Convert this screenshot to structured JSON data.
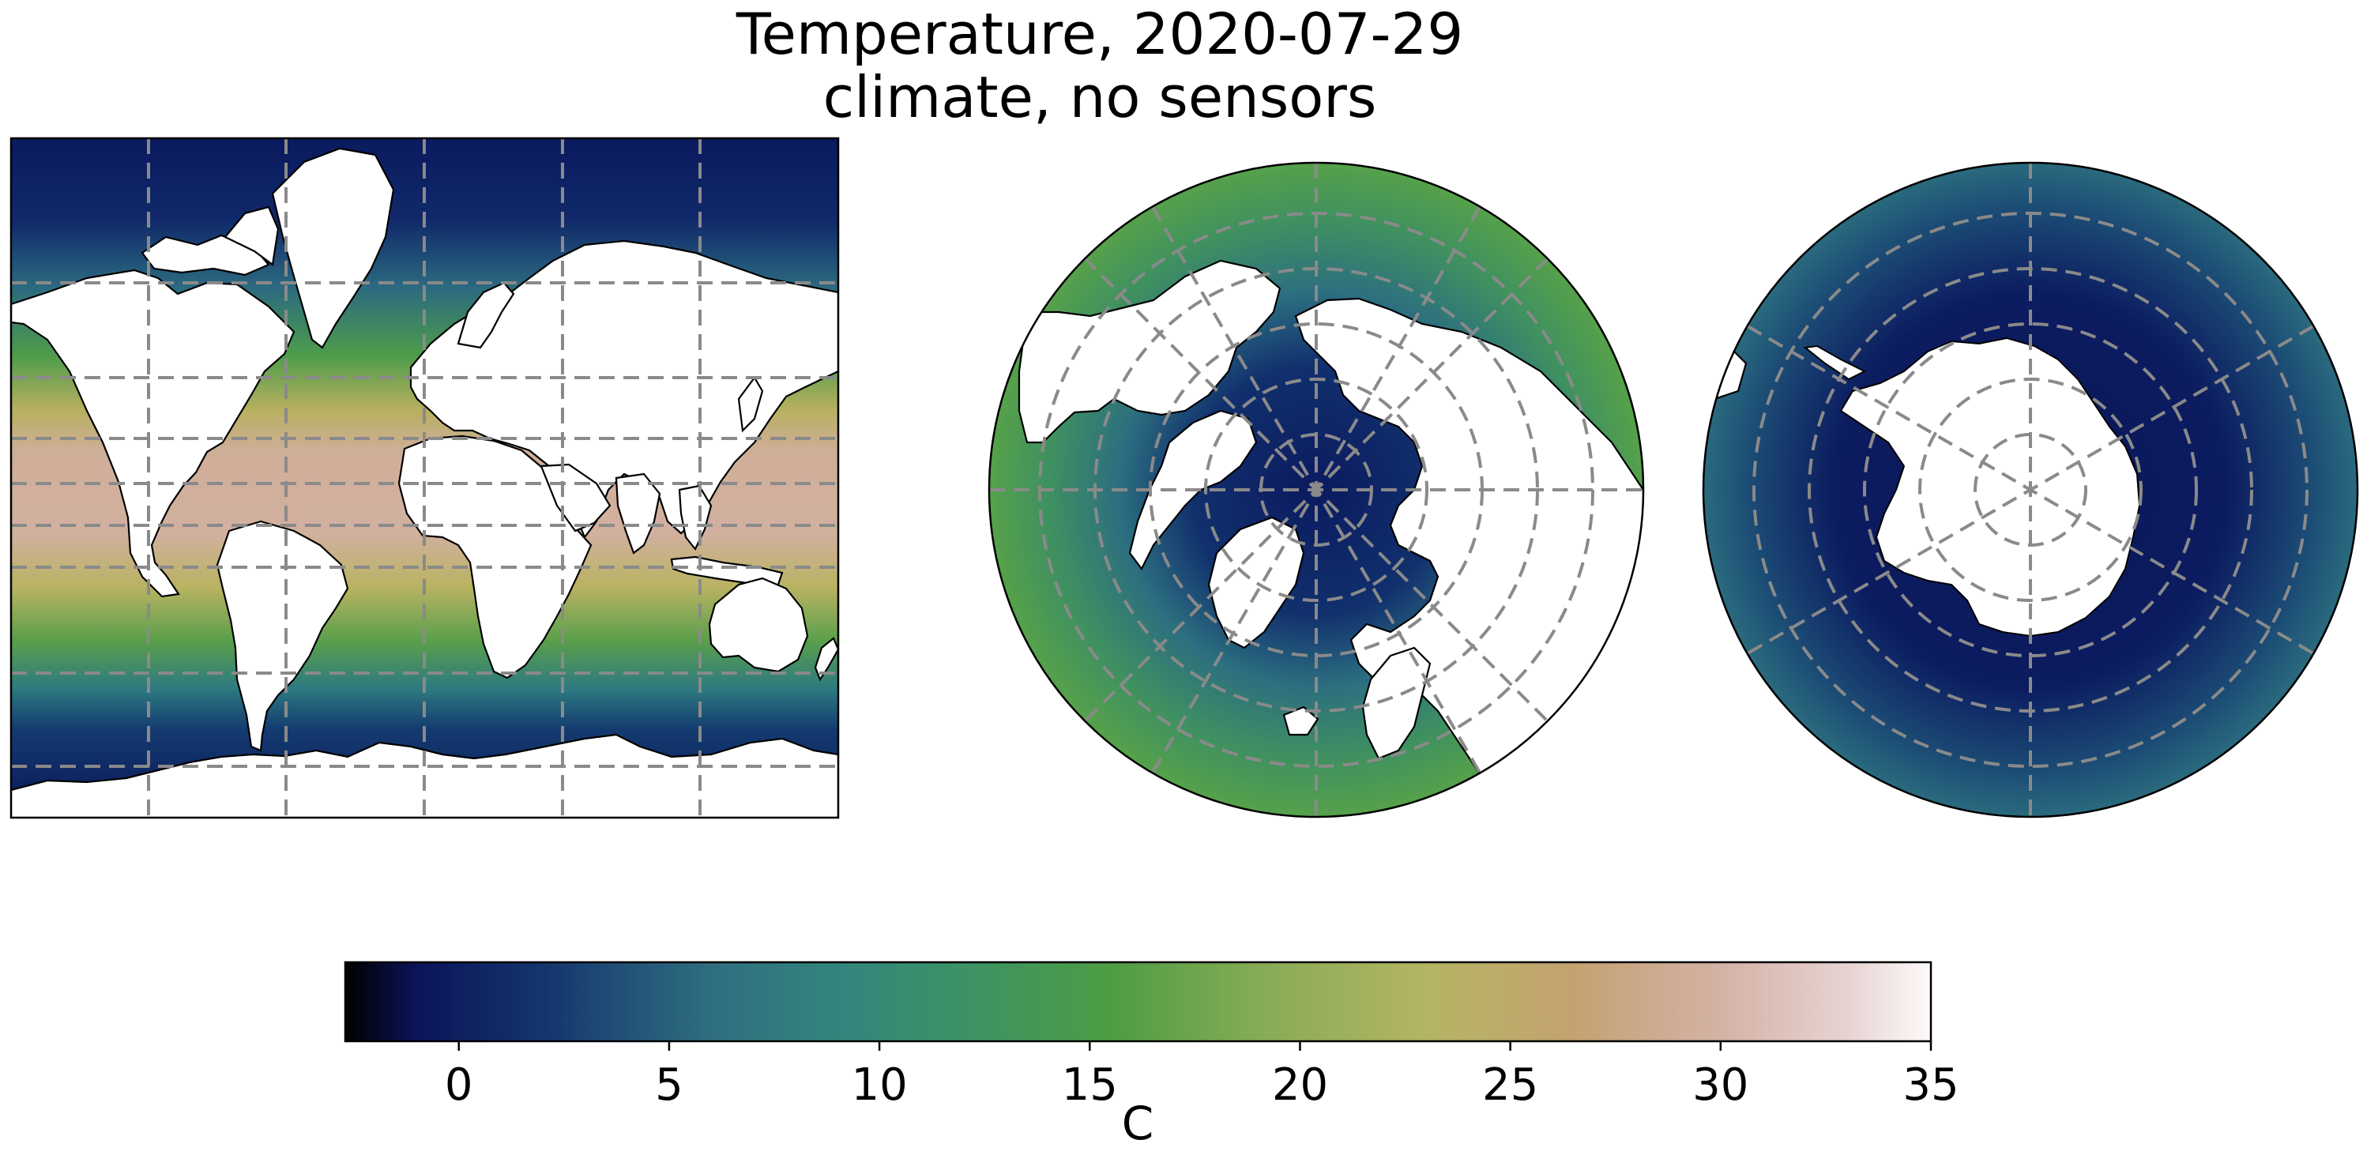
{
  "title": {
    "line1": "Temperature, 2020-07-29",
    "line2": "climate, no sensors"
  },
  "panels": [
    {
      "projection": "mercator",
      "name": "global"
    },
    {
      "projection": "north-polar-stereographic",
      "name": "arctic"
    },
    {
      "projection": "south-polar-stereographic",
      "name": "antarctic"
    }
  ],
  "colorbar": {
    "label": "C",
    "vmin": -2.7,
    "vmax": 35,
    "ticks": [
      0,
      5,
      10,
      15,
      20,
      25,
      30,
      35
    ],
    "tick_labels": [
      "0",
      "5",
      "10",
      "15",
      "20",
      "25",
      "30",
      "35"
    ],
    "colormap": "gist_earth",
    "stops": [
      {
        "value": -2.7,
        "color": "#000000"
      },
      {
        "value": -1.0,
        "color": "#0b1458"
      },
      {
        "value": 2.0,
        "color": "#14356e"
      },
      {
        "value": 6.0,
        "color": "#2f6e80"
      },
      {
        "value": 9.0,
        "color": "#32857d"
      },
      {
        "value": 12.0,
        "color": "#3c9266"
      },
      {
        "value": 15.5,
        "color": "#4d9d43"
      },
      {
        "value": 19.0,
        "color": "#86ab55"
      },
      {
        "value": 23.0,
        "color": "#b4b563"
      },
      {
        "value": 26.5,
        "color": "#c4a270"
      },
      {
        "value": 30.0,
        "color": "#d4b2a6"
      },
      {
        "value": 33.0,
        "color": "#e7d2d2"
      },
      {
        "value": 35.0,
        "color": "#fdfafa"
      }
    ]
  }
}
